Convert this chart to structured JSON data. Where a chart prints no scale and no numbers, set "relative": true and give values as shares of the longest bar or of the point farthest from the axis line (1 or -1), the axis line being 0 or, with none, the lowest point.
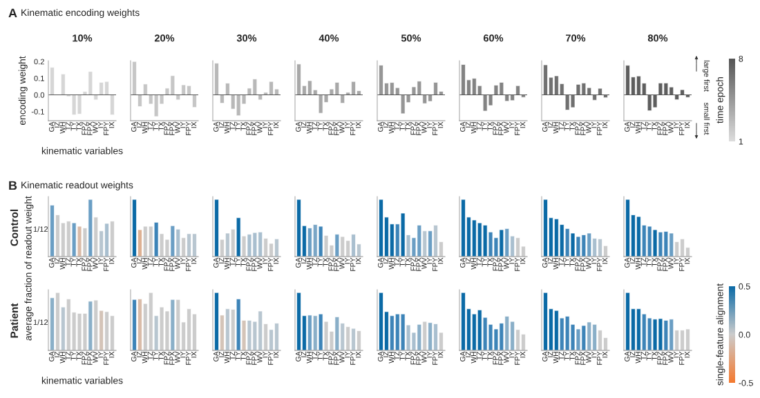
{
  "chart_data": [
    {
      "type": "bar",
      "title": "10%",
      "xlabel": "kinematic variables",
      "ylabel": "encoding weight",
      "annotations": [
        "A",
        "Kinematic encoding weights"
      ],
      "categories": [
        "GA",
        "IZ",
        "WH",
        "TZ",
        "TY",
        "TX",
        "FPZ",
        "FPX",
        "WV",
        "IY",
        "FPY",
        "IX"
      ],
      "values": [
        0.165,
        null,
        0.125,
        -0.01,
        -0.12,
        -0.115,
        0.02,
        0.14,
        -0.03,
        0.075,
        0.08,
        -0.12
      ],
      "color": "#d6d6d6",
      "ylim": [
        -0.155,
        0.205
      ],
      "yticks": [
        {
          "value": -0.1,
          "label": "-0.1"
        },
        {
          "value": 0,
          "label": "0.0"
        },
        0.1,
        0.2
      ],
      "ref_lines": [
        {
          "axis": "y",
          "value": 0
        }
      ]
    },
    {
      "type": "bar",
      "title": "20%",
      "categories": [
        "GA",
        "IZ",
        "WH",
        "TZ",
        "TY",
        "TX",
        "FPZ",
        "FPX",
        "WV",
        "IY",
        "FPY",
        "IX"
      ],
      "values": [
        0.2,
        -0.07,
        0.065,
        -0.055,
        -0.13,
        -0.055,
        0.04,
        0.115,
        -0.03,
        0.06,
        0.055,
        -0.075
      ],
      "color": "#c6c6c6",
      "ylim": [
        -0.155,
        0.205
      ],
      "tick_labels": "x",
      "ref_lines": [
        {
          "axis": "y",
          "value": 0
        }
      ]
    },
    {
      "type": "bar",
      "title": "30%",
      "categories": [
        "GA",
        "IZ",
        "WH",
        "TZ",
        "TY",
        "TX",
        "FPZ",
        "FPX",
        "WV",
        "IY",
        "FPY",
        "IX"
      ],
      "values": [
        0.19,
        -0.05,
        0.07,
        -0.085,
        -0.125,
        -0.055,
        0.04,
        0.095,
        -0.03,
        0.015,
        0.08,
        0.035
      ],
      "color": "#b8b8b8",
      "ylim": [
        -0.155,
        0.205
      ],
      "tick_labels": "x",
      "ref_lines": [
        {
          "axis": "y",
          "value": 0
        }
      ]
    },
    {
      "type": "bar",
      "title": "40%",
      "categories": [
        "GA",
        "IZ",
        "WH",
        "TZ",
        "TY",
        "TX",
        "FPZ",
        "FPX",
        "WV",
        "IY",
        "FPY",
        "IX"
      ],
      "values": [
        0.185,
        0.055,
        0.085,
        0.03,
        -0.11,
        -0.045,
        0.035,
        0.075,
        -0.05,
        0.015,
        0.08,
        0.025
      ],
      "color": "#a8a8a8",
      "ylim": [
        -0.155,
        0.205
      ],
      "tick_labels": "x",
      "ref_lines": [
        {
          "axis": "y",
          "value": 0
        }
      ]
    },
    {
      "type": "bar",
      "title": "50%",
      "categories": [
        "GA",
        "IZ",
        "WH",
        "TZ",
        "TY",
        "TX",
        "FPZ",
        "FPX",
        "WV",
        "IY",
        "FPY",
        "IX"
      ],
      "values": [
        0.178,
        0.071,
        0.074,
        0.043,
        -0.113,
        -0.046,
        0.048,
        0.082,
        -0.052,
        -0.039,
        0.075,
        0.021
      ],
      "color": "#969696",
      "ylim": [
        -0.155,
        0.205
      ],
      "tick_labels": "x",
      "ref_lines": [
        {
          "axis": "y",
          "value": 0
        }
      ]
    },
    {
      "type": "bar",
      "title": "60%",
      "categories": [
        "GA",
        "IZ",
        "WH",
        "TZ",
        "TY",
        "TX",
        "FPZ",
        "FPX",
        "WV",
        "IY",
        "FPY",
        "IX"
      ],
      "values": [
        0.182,
        0.09,
        0.099,
        0.055,
        -0.097,
        -0.064,
        0.058,
        0.075,
        -0.038,
        -0.034,
        0.055,
        -0.015
      ],
      "color": "#838383",
      "ylim": [
        -0.155,
        0.205
      ],
      "tick_labels": "x",
      "ref_lines": [
        {
          "axis": "y",
          "value": 0
        }
      ]
    },
    {
      "type": "bar",
      "title": "70%",
      "categories": [
        "GA",
        "IZ",
        "WH",
        "TZ",
        "TY",
        "TX",
        "FPZ",
        "FPX",
        "WV",
        "IY",
        "FPY",
        "IX"
      ],
      "values": [
        0.18,
        0.105,
        0.114,
        0.067,
        -0.091,
        -0.076,
        0.063,
        0.071,
        0.043,
        -0.032,
        0.039,
        -0.017
      ],
      "color": "#707070",
      "ylim": [
        -0.155,
        0.205
      ],
      "tick_labels": "x",
      "ref_lines": [
        {
          "axis": "y",
          "value": 0
        }
      ]
    },
    {
      "type": "bar",
      "title": "80%",
      "annotations": [
        "large first",
        "small first"
      ],
      "clabel": "time epoch",
      "clim": [
        1,
        8
      ],
      "cticks": [
        1,
        8
      ],
      "categories": [
        "GA",
        "IZ",
        "WH",
        "TZ",
        "TY",
        "TX",
        "FPZ",
        "FPX",
        "WV",
        "IY",
        "FPY",
        "IX"
      ],
      "values": [
        0.177,
        0.107,
        0.113,
        0.07,
        -0.095,
        -0.076,
        0.071,
        0.071,
        0.047,
        -0.029,
        0.031,
        -0.015
      ],
      "color": "#5e5e5e",
      "ylim": [
        -0.155,
        0.205
      ],
      "tick_labels": "x",
      "ref_lines": [
        {
          "axis": "y",
          "value": 0
        }
      ]
    },
    {
      "type": "bar",
      "relative": true,
      "annotations": [
        "B",
        "Kinematic readout weights",
        "Control",
        "1/12"
      ],
      "categories": [
        "GA",
        "IZ",
        "WH",
        "TZ",
        "TY",
        "TX",
        "FPZ",
        "FPX",
        "WV",
        "IY",
        "FPY",
        "IX"
      ],
      "values": [
        0.9,
        0.73,
        0.59,
        0.62,
        0.59,
        0.53,
        0.5,
        1,
        0.69,
        0.45,
        0.58,
        0.62
      ],
      "colors": [
        "#6a9ec4",
        "#cccccc",
        "#cccccc",
        "#cccccc",
        "#6a9ec4",
        "#d9bba8",
        "#cccccc",
        "#6a9ec4",
        "#cccccc",
        "#b8c6d0",
        "#a9bfcf",
        "#cccccc"
      ]
    },
    {
      "type": "bar",
      "relative": true,
      "categories": [
        "GA",
        "IZ",
        "WH",
        "TZ",
        "TY",
        "TX",
        "FPZ",
        "FPX",
        "WV",
        "IY",
        "FPY",
        "IX"
      ],
      "values": [
        1,
        0.47,
        0.53,
        0.53,
        0.6,
        0.4,
        0.3,
        0.54,
        0.48,
        0.33,
        0.4,
        0.4
      ],
      "colors": [
        "#0b6aa6",
        "#ddb092",
        "#cccccc",
        "#cccccc",
        "#3d84b8",
        "#cccccc",
        "#cccccc",
        "#6a9ec4",
        "#a9bfcf",
        "#cccccc",
        "#b8c6d0",
        "#b8c6d0"
      ]
    },
    {
      "type": "bar",
      "relative": true,
      "categories": [
        "GA",
        "IZ",
        "WH",
        "TZ",
        "TY",
        "TX",
        "FPZ",
        "FPX",
        "WV",
        "IY",
        "FPY",
        "IX"
      ],
      "values": [
        1,
        0.3,
        0.41,
        0.48,
        0.68,
        0.36,
        0.39,
        0.42,
        0.43,
        0.32,
        0.23,
        0.31
      ],
      "colors": [
        "#0b6aa6",
        "#cccccc",
        "#b8c6d0",
        "#cccccc",
        "#0b6aa6",
        "#cccccc",
        "#a9bfcf",
        "#a9bfcf",
        "#a9bfcf",
        "#cccccc",
        "#cccccc",
        "#b8c6d0"
      ]
    },
    {
      "type": "bar",
      "relative": true,
      "categories": [
        "GA",
        "IZ",
        "WH",
        "TZ",
        "TY",
        "TX",
        "FPZ",
        "FPX",
        "WV",
        "IY",
        "FPY",
        "IX"
      ],
      "values": [
        1,
        0.54,
        0.5,
        0.56,
        0.53,
        0.37,
        0.2,
        0.39,
        0.35,
        0.28,
        0.39,
        0.22
      ],
      "colors": [
        "#0b6aa6",
        "#0b6aa6",
        "#6a9ec4",
        "#7aa6c6",
        "#3d84b8",
        "#cccccc",
        "#cccccc",
        "#6a9ec4",
        "#cccccc",
        "#cccccc",
        "#a9bfcf",
        "#b8c6d0"
      ]
    },
    {
      "type": "bar",
      "relative": true,
      "categories": [
        "GA",
        "IZ",
        "WH",
        "TZ",
        "TY",
        "TX",
        "FPZ",
        "FPX",
        "WV",
        "IY",
        "FPY",
        "IX"
      ],
      "values": [
        1,
        0.69,
        0.57,
        0.57,
        0.76,
        0.38,
        0.33,
        0.55,
        0.45,
        0.45,
        0.55,
        0.26
      ],
      "colors": [
        "#0b6aa6",
        "#0b6aa6",
        "#0b6aa6",
        "#3d84b8",
        "#0b6aa6",
        "#a9bfcf",
        "#6a9ec4",
        "#6a9ec4",
        "#b8c6d0",
        "#6a9ec4",
        "#b8c6d0",
        "#cccccc"
      ]
    },
    {
      "type": "bar",
      "relative": true,
      "categories": [
        "GA",
        "IZ",
        "WH",
        "TZ",
        "TY",
        "TX",
        "FPZ",
        "FPX",
        "WV",
        "IY",
        "FPY",
        "IX"
      ],
      "values": [
        1,
        0.69,
        0.64,
        0.59,
        0.55,
        0.43,
        0.33,
        0.47,
        0.49,
        0.36,
        0.33,
        0.18
      ],
      "colors": [
        "#0b6aa6",
        "#0b6aa6",
        "#0b6aa6",
        "#0b6aa6",
        "#0b6aa6",
        "#3d84b8",
        "#3d84b8",
        "#0b6aa6",
        "#6a9ec4",
        "#a9bfcf",
        "#cccccc",
        "#cccccc"
      ]
    },
    {
      "type": "bar",
      "relative": true,
      "categories": [
        "GA",
        "IZ",
        "WH",
        "TZ",
        "TY",
        "TX",
        "FPZ",
        "FPX",
        "WV",
        "IY",
        "FPY",
        "IX"
      ],
      "values": [
        1,
        0.68,
        0.66,
        0.56,
        0.49,
        0.41,
        0.35,
        0.38,
        0.41,
        0.32,
        0.31,
        0.19
      ],
      "colors": [
        "#0b6aa6",
        "#0b6aa6",
        "#0b6aa6",
        "#0b6aa6",
        "#3d84b8",
        "#0b6aa6",
        "#3d84b8",
        "#3d84b8",
        "#6a9ec4",
        "#a9bfcf",
        "#b8c6d0",
        "#cccccc"
      ]
    },
    {
      "type": "bar",
      "relative": true,
      "categories": [
        "GA",
        "IZ",
        "WH",
        "TZ",
        "TY",
        "TX",
        "FPZ",
        "FPX",
        "WV",
        "IY",
        "FPY",
        "IX"
      ],
      "values": [
        1,
        0.73,
        0.7,
        0.55,
        0.53,
        0.47,
        0.43,
        0.44,
        0.41,
        0.26,
        0.31,
        0.16
      ],
      "colors": [
        "#0b6aa6",
        "#0b6aa6",
        "#0b6aa6",
        "#3d84b8",
        "#3d84b8",
        "#0b6aa6",
        "#3d84b8",
        "#3d84b8",
        "#6a9ec4",
        "#cccccc",
        "#cccccc",
        "#cccccc"
      ]
    },
    {
      "type": "bar",
      "relative": true,
      "xlabel": "kinematic variables",
      "ylabel": "average fraction of readout weight",
      "annotations": [
        "Patient",
        "1/12"
      ],
      "categories": [
        "GA",
        "IZ",
        "WH",
        "TZ",
        "TY",
        "TX",
        "FPZ",
        "FPX",
        "WV",
        "IY",
        "FPY",
        "IX"
      ],
      "values": [
        0.91,
        1,
        0.75,
        0.89,
        0.66,
        0.64,
        0.64,
        0.85,
        0.87,
        0.69,
        0.67,
        0.6
      ],
      "colors": [
        "#8aafc8",
        "#cccccc",
        "#b8c6d0",
        "#cccccc",
        "#cccccc",
        "#cccccc",
        "#cccccc",
        "#8aafc8",
        "#cccccc",
        "#d4c4b8",
        "#cccccc",
        "#cccccc"
      ]
    },
    {
      "type": "bar",
      "relative": true,
      "categories": [
        "GA",
        "IZ",
        "WH",
        "TZ",
        "TY",
        "TX",
        "FPZ",
        "FPX",
        "WV",
        "IY",
        "FPY",
        "IX"
      ],
      "values": [
        0.88,
        0.89,
        0.81,
        1,
        0.6,
        0.75,
        0.68,
        0.88,
        0.88,
        0.49,
        0.72,
        0.63
      ],
      "colors": [
        "#3d84b8",
        "#d9bba8",
        "#cccccc",
        "#cccccc",
        "#b8c6d0",
        "#cccccc",
        "#cccccc",
        "#8aafc8",
        "#cccccc",
        "#cccccc",
        "#cccccc",
        "#cccccc"
      ]
    },
    {
      "type": "bar",
      "relative": true,
      "categories": [
        "GA",
        "IZ",
        "WH",
        "TZ",
        "TY",
        "TX",
        "FPZ",
        "FPX",
        "WV",
        "IY",
        "FPY",
        "IX"
      ],
      "values": [
        1,
        0.61,
        0.72,
        0.71,
        0.89,
        0.52,
        0.52,
        0.5,
        0.68,
        0.46,
        0.36,
        0.47
      ],
      "colors": [
        "#0b6aa6",
        "#d4c4b8",
        "#b8c6d0",
        "#cccccc",
        "#3d84b8",
        "#d4c4b8",
        "#b8c6d0",
        "#b8c6d0",
        "#b8c6d0",
        "#cccccc",
        "#b8c6d0",
        "#b8c6d0"
      ]
    },
    {
      "type": "bar",
      "relative": true,
      "categories": [
        "GA",
        "IZ",
        "WH",
        "TZ",
        "TY",
        "TX",
        "FPZ",
        "FPX",
        "WV",
        "IY",
        "FPY",
        "IX"
      ],
      "values": [
        1,
        0.6,
        0.61,
        0.6,
        0.63,
        0.5,
        0.33,
        0.58,
        0.47,
        0.41,
        0.38,
        0.34
      ],
      "colors": [
        "#0b6aa6",
        "#0b6aa6",
        "#6a9ec4",
        "#8aafc8",
        "#3d84b8",
        "#cccccc",
        "#cccccc",
        "#8aafc8",
        "#b8c6d0",
        "#cccccc",
        "#b8c6d0",
        "#cccccc"
      ]
    },
    {
      "type": "bar",
      "relative": true,
      "categories": [
        "GA",
        "IZ",
        "WH",
        "TZ",
        "TY",
        "TX",
        "FPZ",
        "FPX",
        "WV",
        "IY",
        "FPY",
        "IX"
      ],
      "values": [
        1,
        0.67,
        0.6,
        0.63,
        0.63,
        0.44,
        0.31,
        0.45,
        0.5,
        0.48,
        0.46,
        0.31
      ],
      "colors": [
        "#0b6aa6",
        "#0b6aa6",
        "#3d84b8",
        "#3d84b8",
        "#3d84b8",
        "#a9bfcf",
        "#a9bfcf",
        "#8aafc8",
        "#cccccc",
        "#8aafc8",
        "#a9bfcf",
        "#cccccc"
      ]
    },
    {
      "type": "bar",
      "relative": true,
      "categories": [
        "GA",
        "IZ",
        "WH",
        "TZ",
        "TY",
        "TX",
        "FPZ",
        "FPX",
        "WV",
        "IY",
        "FPY",
        "IX"
      ],
      "values": [
        1,
        0.72,
        0.63,
        0.7,
        0.57,
        0.45,
        0.37,
        0.47,
        0.59,
        0.5,
        0.36,
        0.28
      ],
      "colors": [
        "#0b6aa6",
        "#0b6aa6",
        "#0b6aa6",
        "#0b6aa6",
        "#3d84b8",
        "#3d84b8",
        "#3d84b8",
        "#3d84b8",
        "#8aafc8",
        "#8aafc8",
        "#cccccc",
        "#cccccc"
      ]
    },
    {
      "type": "bar",
      "relative": true,
      "categories": [
        "GA",
        "IZ",
        "WH",
        "TZ",
        "TY",
        "TX",
        "FPZ",
        "FPX",
        "WV",
        "IY",
        "FPY",
        "IX"
      ],
      "values": [
        1,
        0.72,
        0.69,
        0.56,
        0.59,
        0.45,
        0.37,
        0.43,
        0.49,
        0.45,
        0.35,
        0.22
      ],
      "colors": [
        "#0b6aa6",
        "#0b6aa6",
        "#0b6aa6",
        "#3d84b8",
        "#3d84b8",
        "#3d84b8",
        "#6a9ec4",
        "#3d84b8",
        "#8aafc8",
        "#8aafc8",
        "#cccccc",
        "#cccccc"
      ]
    },
    {
      "type": "bar",
      "relative": true,
      "clabel": "single-feature alignment",
      "clim": [
        -0.5,
        0.5
      ],
      "cticks": [
        -0.5,
        {
          "value": 0,
          "label": "0.0"
        },
        0.5
      ],
      "categories": [
        "GA",
        "IZ",
        "WH",
        "TZ",
        "TY",
        "TX",
        "FPZ",
        "FPX",
        "WV",
        "IY",
        "FPY",
        "IX"
      ],
      "values": [
        1,
        0.72,
        0.72,
        0.63,
        0.56,
        0.54,
        0.55,
        0.52,
        0.54,
        0.35,
        0.35,
        0.37
      ],
      "colors": [
        "#0b6aa6",
        "#0b6aa6",
        "#0b6aa6",
        "#3d84b8",
        "#3d84b8",
        "#0b6aa6",
        "#0b6aa6",
        "#3d84b8",
        "#6a9ec4",
        "#cccccc",
        "#cccccc",
        "#cccccc"
      ]
    }
  ]
}
